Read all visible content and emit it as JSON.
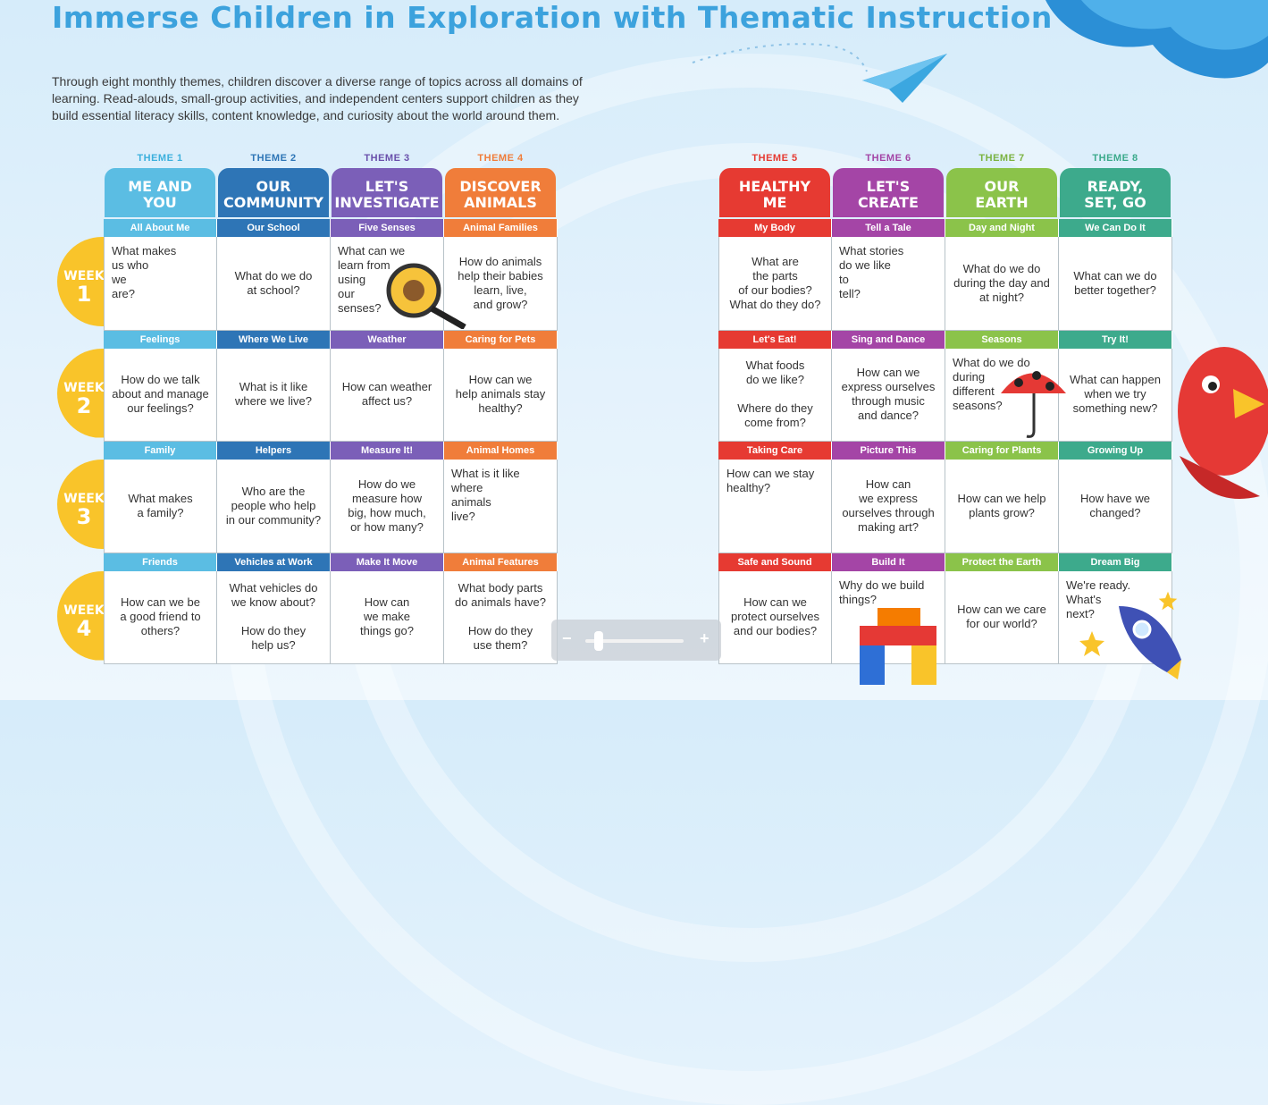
{
  "title": "Immerse Children in Exploration with Thematic Instruction",
  "intro": "Through eight monthly themes, children discover a diverse range of topics across all domains of learning. Read-alouds, small-group activities, and independent centers support children as they build essential literacy skills, content knowledge, and curiosity about the world around them.",
  "week_prefix": "WEEK",
  "weeks": [
    "1",
    "2",
    "3",
    "4"
  ],
  "colors": {
    "theme1": "#5bbde3",
    "theme2": "#2e75b6",
    "theme3": "#7b5fb8",
    "theme4": "#f07d3a",
    "theme5": "#e63a32",
    "theme6": "#a445a6",
    "theme7": "#8bc34a",
    "theme8": "#3daa8c",
    "week_badge": "#f9c42a",
    "title": "#3ca2dd"
  },
  "themes": [
    {
      "number": "THEME 1",
      "name": "ME AND\nYOU",
      "num_color": "#3cb0dd",
      "color": "#5bbde3",
      "weeks": [
        {
          "topic": "All About Me",
          "question": "What makes\nus who\nwe\nare?"
        },
        {
          "topic": "Feelings",
          "question": "How do we talk\nabout and manage\nour feelings?"
        },
        {
          "topic": "Family",
          "question": "What makes\na family?"
        },
        {
          "topic": "Friends",
          "question": "How can we be\na good friend to\nothers?"
        }
      ]
    },
    {
      "number": "THEME 2",
      "name": "OUR\nCOMMUNITY",
      "num_color": "#2e75b6",
      "color": "#2e75b6",
      "weeks": [
        {
          "topic": "Our School",
          "question": "What do we do\nat school?"
        },
        {
          "topic": "Where We Live",
          "question": "What is it like\nwhere we live?"
        },
        {
          "topic": "Helpers",
          "question": "Who are the\npeople who help\nin our community?"
        },
        {
          "topic": "Vehicles at Work",
          "question": "What vehicles do\nwe know about?\n\nHow do they\nhelp us?"
        }
      ]
    },
    {
      "number": "THEME 3",
      "name": "LET'S\nINVESTIGATE",
      "num_color": "#6a50ab",
      "color": "#7b5fb8",
      "weeks": [
        {
          "topic": "Five Senses",
          "question": "What can we\nlearn from\nusing\nour\nsenses?"
        },
        {
          "topic": "Weather",
          "question": "How can weather\naffect us?"
        },
        {
          "topic": "Measure It!",
          "question": "How do we\nmeasure how\nbig, how much,\nor how many?"
        },
        {
          "topic": "Make It Move",
          "question": "How can\nwe make\nthings go?"
        }
      ]
    },
    {
      "number": "THEME 4",
      "name": "DISCOVER\nANIMALS",
      "num_color": "#f07d3a",
      "color": "#f07d3a",
      "weeks": [
        {
          "topic": "Animal Families",
          "question": "How do animals\nhelp their babies\nlearn, live,\nand grow?"
        },
        {
          "topic": "Caring for Pets",
          "question": "How can we\nhelp animals stay\nhealthy?"
        },
        {
          "topic": "Animal Homes",
          "question": "What is it like\nwhere\nanimals\nlive?"
        },
        {
          "topic": "Animal Features",
          "question": "What body parts\ndo animals have?\n\nHow do they\nuse them?"
        }
      ]
    },
    {
      "number": "THEME 5",
      "name": "HEALTHY\nME",
      "num_color": "#e63a32",
      "color": "#e63a32",
      "weeks": [
        {
          "topic": "My Body",
          "question": "What are\nthe parts\nof our bodies?\nWhat do they do?"
        },
        {
          "topic": "Let's Eat!",
          "question": "What foods\ndo we like?\n\nWhere do they\ncome from?"
        },
        {
          "topic": "Taking Care",
          "question": "How can we stay\nhealthy?"
        },
        {
          "topic": "Safe and Sound",
          "question": "How can we\nprotect ourselves\nand our bodies?"
        }
      ]
    },
    {
      "number": "THEME 6",
      "name": "LET'S\nCREATE",
      "num_color": "#a445a6",
      "color": "#a445a6",
      "weeks": [
        {
          "topic": "Tell a Tale",
          "question": "What stories\ndo we like\nto\ntell?"
        },
        {
          "topic": "Sing and Dance",
          "question": "How can we\nexpress ourselves\nthrough music\nand dance?"
        },
        {
          "topic": "Picture This",
          "question": "How can\nwe express\nourselves through\nmaking art?"
        },
        {
          "topic": "Build It",
          "question": "Why do we build\nthings?"
        }
      ]
    },
    {
      "number": "THEME 7",
      "name": "OUR\nEARTH",
      "num_color": "#7cb342",
      "color": "#8bc34a",
      "weeks": [
        {
          "topic": "Day and Night",
          "question": "What do we do\nduring the day and\nat night?"
        },
        {
          "topic": "Seasons",
          "question": "What do we do\nduring\ndifferent\nseasons?"
        },
        {
          "topic": "Caring for Plants",
          "question": "How can we help\nplants grow?"
        },
        {
          "topic": "Protect the Earth",
          "question": "How can we care\nfor our world?"
        }
      ]
    },
    {
      "number": "THEME 8",
      "name": "READY,\nSET, GO",
      "num_color": "#3daa8c",
      "color": "#3daa8c",
      "weeks": [
        {
          "topic": "We Can Do It",
          "question": "What can we do\nbetter together?"
        },
        {
          "topic": "Try It!",
          "question": "What can happen\nwhen we try\nsomething new?"
        },
        {
          "topic": "Growing Up",
          "question": "How have we\nchanged?"
        },
        {
          "topic": "Dream Big",
          "question": "We're ready.\nWhat's\nnext?"
        }
      ]
    }
  ],
  "zoom": {
    "minus": "−",
    "plus": "+",
    "level": 0.1
  }
}
